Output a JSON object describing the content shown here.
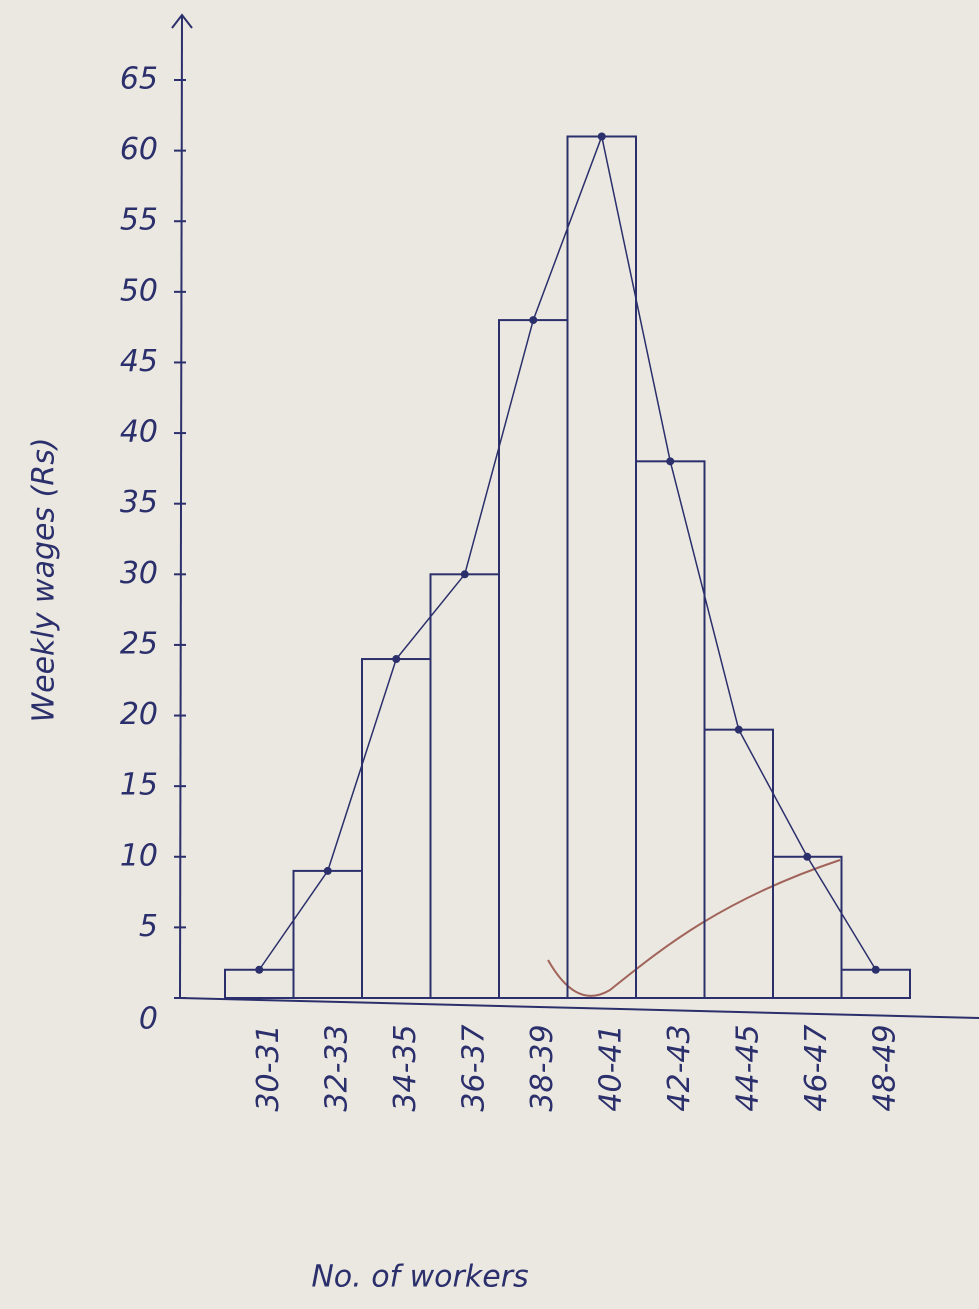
{
  "chart_data": {
    "type": "bar",
    "frequency_polygon": true,
    "y_label": "Weekly wages (Rs)",
    "x_label": "No. of workers",
    "categories": [
      "30-31",
      "32-33",
      "34-35",
      "36-37",
      "38-39",
      "40-41",
      "42-43",
      "44-45",
      "46-47",
      "48-49"
    ],
    "values": [
      2,
      9,
      24,
      30,
      48,
      61,
      38,
      19,
      10,
      2
    ],
    "color": "#2b2f6b",
    "ylim": [
      0,
      67
    ],
    "yticks": [
      0,
      5,
      10,
      15,
      20,
      25,
      30,
      35,
      40,
      45,
      50,
      55,
      60,
      65
    ]
  }
}
